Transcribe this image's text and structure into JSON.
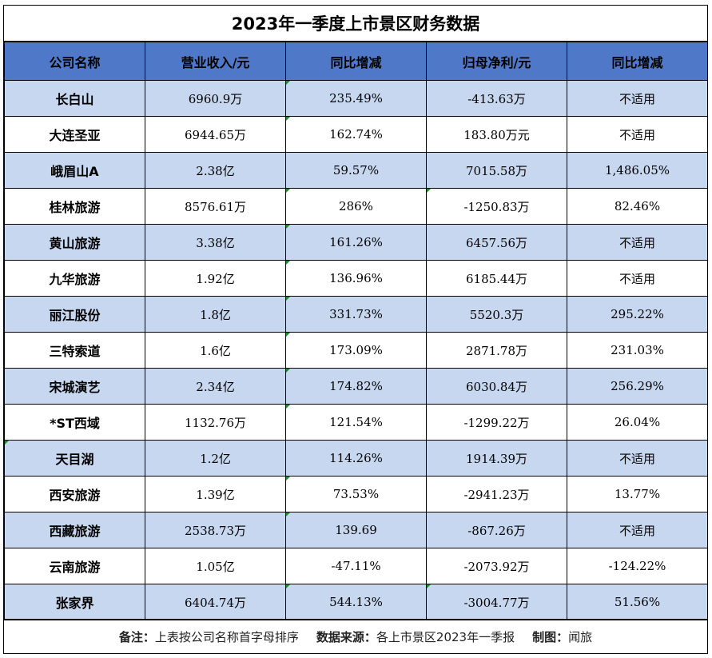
{
  "title": "2023年一季度上市景区财务数据",
  "headers": [
    "公司名称",
    "营业收入/元",
    "同比增减",
    "归母净利/元",
    "同比增减"
  ],
  "rows": [
    [
      "长白山",
      "6960.9万",
      "235.49%",
      "-413.63万",
      "不适用"
    ],
    [
      "大连圣亚",
      "6944.65万",
      "162.74%",
      "183.80万元",
      "不适用"
    ],
    [
      "峨眉山A",
      "2.38亿",
      "59.57%",
      "7015.58万",
      "1,486.05%"
    ],
    [
      "桂林旅游",
      "8576.61万",
      "286%",
      "-1250.83万",
      "82.46%"
    ],
    [
      "黄山旅游",
      "3.38亿",
      "161.26%",
      "6457.56万",
      "不适用"
    ],
    [
      "九华旅游",
      "1.92亿",
      "136.96%",
      "6185.44万",
      "不适用"
    ],
    [
      "丽江股份",
      "1.8亿",
      "331.73%",
      "5520.3万",
      "295.22%"
    ],
    [
      "三特索道",
      "1.6亿",
      "173.09%",
      "2871.78万",
      "231.03%"
    ],
    [
      "宋城演艺",
      "2.34亿",
      "174.82%",
      "6030.84万",
      "256.29%"
    ],
    [
      "*ST西域",
      "1132.76万",
      "121.54%",
      "-1299.22万",
      "26.04%"
    ],
    [
      "天目湖",
      "1.2亿",
      "114.26%",
      "1914.39万",
      "不适用"
    ],
    [
      "西安旅游",
      "1.39亿",
      "73.53%",
      "-2941.23万",
      "13.77%"
    ],
    [
      "西藏旅游",
      "2538.73万",
      "139.69",
      "-867.26万",
      "不适用"
    ],
    [
      "云南旅游",
      "1.05亿",
      "-47.11%",
      "-2073.92万",
      "-124.22%"
    ],
    [
      "张家界",
      "6404.74万",
      "544.13%",
      "-3004.77万",
      "51.56%"
    ]
  ],
  "footer": {
    "note_label": "备注：",
    "note_text": "上表按公司名称首字母排序",
    "source_label": "数据来源：",
    "source_text": "各上市景区2023年一季报",
    "maker_label": "制图：",
    "maker_text": "闻旅"
  },
  "colors": {
    "header_bg": "#4f79c8",
    "stripe_bg": "#c6d7ef",
    "plain_bg": "#ffffff"
  }
}
